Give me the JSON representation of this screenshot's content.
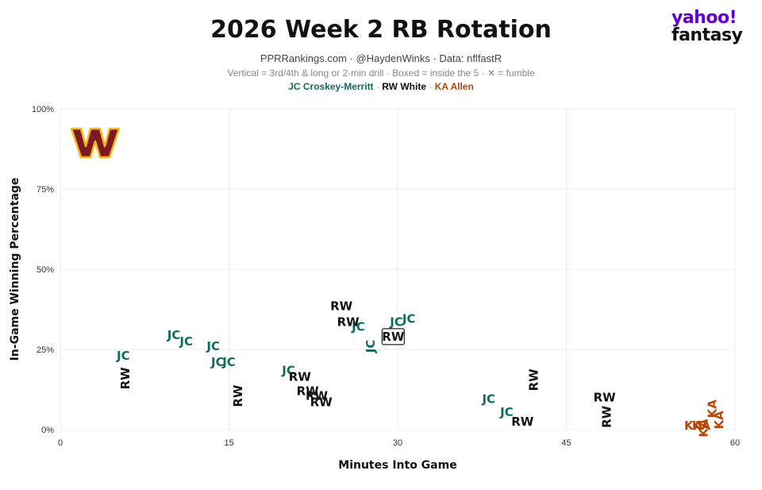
{
  "header": {
    "title": "2026 Week 2 RB Rotation",
    "subtitle": "PPRRankings.com · @HaydenWinks · Data: nflfastR",
    "notes": "Vertical = 3rd/4th & long or 2-min drill · Boxed = inside the 5 · ✕ = fumble",
    "legend": [
      {
        "label": "JC Croskey-Merritt",
        "color": "#0f6b5c"
      },
      {
        "label": "RW White",
        "color": "#111111"
      },
      {
        "label": "KA Allen",
        "color": "#b5470b"
      }
    ],
    "legend_sep": " · "
  },
  "brand": {
    "line1": "yahoo!",
    "line2": "fantasy"
  },
  "team_logo": {
    "name": "washington-commanders-logo",
    "letter": "W",
    "color": "#7a1a22",
    "accent": "#ffb612"
  },
  "chart_data": {
    "type": "scatter",
    "xlabel": "Minutes Into Game",
    "ylabel": "In-Game Winning Percentage",
    "xlim": [
      0,
      60
    ],
    "ylim": [
      0,
      100
    ],
    "xticks": [
      0,
      15,
      30,
      45,
      60
    ],
    "xtick_labels": [
      "0",
      "15",
      "30",
      "45",
      "60"
    ],
    "yticks": [
      0,
      25,
      50,
      75,
      100
    ],
    "ytick_labels": [
      "0%",
      "25%",
      "50%",
      "75%",
      "100%"
    ],
    "grid": true,
    "series": [
      {
        "name": "JC Croskey-Merritt",
        "color": "#0f6b5c",
        "points": [
          {
            "x": 5.6,
            "y": 23,
            "label": "JC"
          },
          {
            "x": 10.1,
            "y": 29.5,
            "label": "JC"
          },
          {
            "x": 11.2,
            "y": 27.5,
            "label": "JC"
          },
          {
            "x": 13.6,
            "y": 26,
            "label": "JC"
          },
          {
            "x": 14.0,
            "y": 21,
            "label": "JC"
          },
          {
            "x": 15.0,
            "y": 21,
            "label": "JC"
          },
          {
            "x": 20.3,
            "y": 18.5,
            "label": "JC"
          },
          {
            "x": 26.5,
            "y": 32,
            "label": "JC"
          },
          {
            "x": 27.6,
            "y": 26,
            "label": "JC",
            "vertical": true
          },
          {
            "x": 29.9,
            "y": 33.5,
            "label": "JC"
          },
          {
            "x": 31.0,
            "y": 34.5,
            "label": "JC"
          },
          {
            "x": 38.1,
            "y": 9.5,
            "label": "JC"
          },
          {
            "x": 39.7,
            "y": 5.5,
            "label": "JC"
          }
        ]
      },
      {
        "name": "RW White",
        "color": "#111111",
        "points": [
          {
            "x": 5.8,
            "y": 16,
            "label": "RW",
            "vertical": true
          },
          {
            "x": 15.8,
            "y": 10.5,
            "label": "RW",
            "vertical": true
          },
          {
            "x": 21.3,
            "y": 16.5,
            "label": "RW"
          },
          {
            "x": 22.0,
            "y": 12,
            "label": "RW"
          },
          {
            "x": 22.8,
            "y": 10.5,
            "label": "RW"
          },
          {
            "x": 23.2,
            "y": 8.5,
            "label": "RW"
          },
          {
            "x": 25.0,
            "y": 38.5,
            "label": "RW"
          },
          {
            "x": 25.6,
            "y": 33.5,
            "label": "RW"
          },
          {
            "x": 29.6,
            "y": 29,
            "label": "RW",
            "boxed": true
          },
          {
            "x": 41.1,
            "y": 2.5,
            "label": "RW"
          },
          {
            "x": 42.1,
            "y": 15.5,
            "label": "RW",
            "vertical": true
          },
          {
            "x": 48.4,
            "y": 10,
            "label": "RW"
          },
          {
            "x": 48.6,
            "y": 4,
            "label": "RW",
            "vertical": true
          }
        ]
      },
      {
        "name": "KA Allen",
        "color": "#b5470b",
        "points": [
          {
            "x": 56.3,
            "y": 1.2,
            "label": "KA"
          },
          {
            "x": 57.0,
            "y": 1.2,
            "label": "KA"
          },
          {
            "x": 57.2,
            "y": 0.5,
            "label": "KA",
            "vertical": true
          },
          {
            "x": 58.0,
            "y": 6.5,
            "label": "KA",
            "vertical": true
          },
          {
            "x": 58.6,
            "y": 3,
            "label": "KA",
            "vertical": true
          }
        ]
      }
    ]
  }
}
